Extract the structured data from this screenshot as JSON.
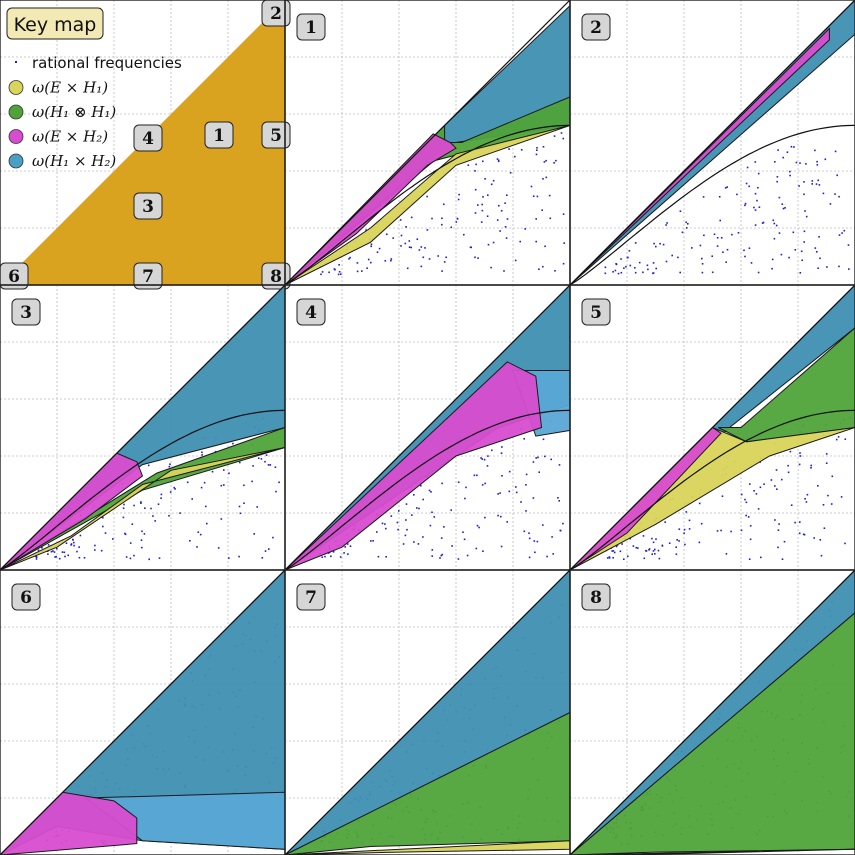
{
  "key_map": {
    "title": "Key map",
    "region_color": "#d9a21f",
    "markers": [
      {
        "id": "marker-1",
        "label": "1"
      },
      {
        "id": "marker-2",
        "label": "2"
      },
      {
        "id": "marker-3",
        "label": "3"
      },
      {
        "id": "marker-4",
        "label": "4"
      },
      {
        "id": "marker-5",
        "label": "5"
      },
      {
        "id": "marker-6",
        "label": "6"
      },
      {
        "id": "marker-7",
        "label": "7"
      },
      {
        "id": "marker-8",
        "label": "8"
      }
    ]
  },
  "legend": {
    "items": [
      {
        "key": "rational",
        "symbol": "dot",
        "label": "rational frequencies",
        "color": "#1d1dd8",
        "math": false
      },
      {
        "key": "yellow",
        "symbol": "circle",
        "label": "ω(E × H₁)",
        "color": "#d9d45a",
        "math": true
      },
      {
        "key": "green",
        "symbol": "circle",
        "label": "ω(H₁ ⊗ H₁)",
        "color": "#4fa33a",
        "math": true
      },
      {
        "key": "magenta",
        "symbol": "circle",
        "label": "ω(E × H₂)",
        "color": "#d84ccf",
        "math": true
      },
      {
        "key": "cyan",
        "symbol": "circle",
        "label": "ω(H₁ × H₂)",
        "color": "#4b9fc4",
        "math": true
      }
    ]
  },
  "colors": {
    "yellow": "#d9d45a",
    "green": "#4fa33a",
    "magenta": "#d84ccf",
    "cyan": "#3f8fb2",
    "cyan_light": "#5aa6d6",
    "dots": "#1d1dd8",
    "badge_fill": "#d6d6d6",
    "keymap_title_fill": "#f2e9b4"
  },
  "panels": [
    {
      "id": "panel-1",
      "label": "1"
    },
    {
      "id": "panel-2",
      "label": "2"
    },
    {
      "id": "panel-3",
      "label": "3"
    },
    {
      "id": "panel-4",
      "label": "4"
    },
    {
      "id": "panel-5",
      "label": "5"
    },
    {
      "id": "panel-6",
      "label": "6"
    },
    {
      "id": "panel-7",
      "label": "7"
    },
    {
      "id": "panel-8",
      "label": "8"
    }
  ]
}
